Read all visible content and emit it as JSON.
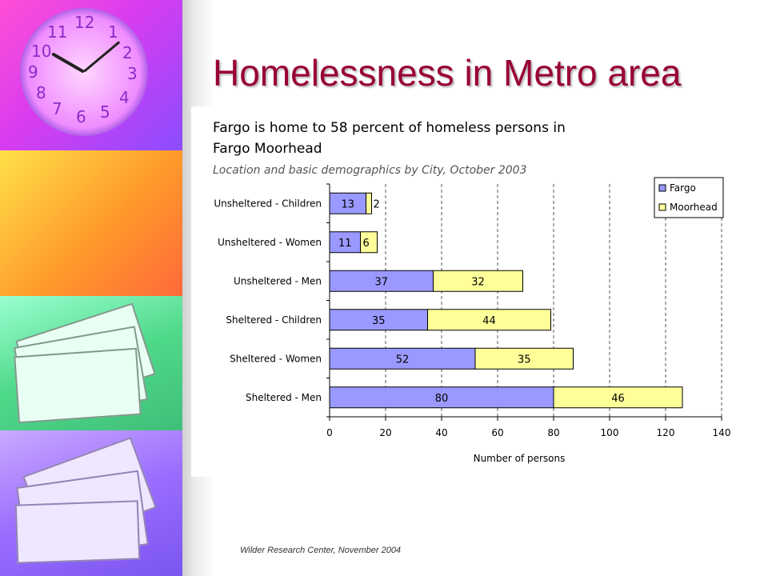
{
  "slide": {
    "title": "Homelessness in Metro area",
    "footer": "Wilder Research Center, November 2004"
  },
  "chart_data": {
    "type": "bar",
    "orientation": "horizontal",
    "stacked": true,
    "title_line1": "Fargo is home to 58 percent of homeless persons in",
    "title_line2": "Fargo Moorhead",
    "subtitle": "Location and basic demographics by City, October 2003",
    "categories": [
      "Unsheltered - Children",
      "Unsheltered - Women",
      "Unsheltered - Men",
      "Sheltered - Children",
      "Sheltered - Women",
      "Sheltered - Men"
    ],
    "series": [
      {
        "name": "Fargo",
        "color": "#9999ff",
        "values": [
          13,
          11,
          37,
          35,
          52,
          80
        ]
      },
      {
        "name": "Moorhead",
        "color": "#ffff99",
        "values": [
          2,
          6,
          32,
          44,
          35,
          46
        ]
      }
    ],
    "xlabel": "Number of persons",
    "xlim": [
      0,
      140
    ],
    "xticks": [
      0,
      20,
      40,
      60,
      80,
      100,
      120,
      140
    ],
    "grid": "vertical dashed",
    "legend": "top-right"
  }
}
